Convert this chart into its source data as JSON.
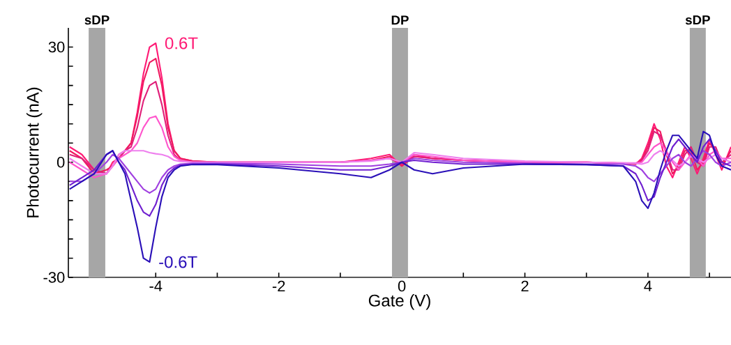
{
  "chart_data": {
    "type": "line",
    "xlabel": "Gate (V)",
    "ylabel": "Photocurrent (nA)",
    "xlim": [
      -5.42,
      5.35
    ],
    "ylim": [
      -30,
      35
    ],
    "xticks": [
      {
        "value": -5,
        "label": null
      },
      -4,
      {
        "value": -3,
        "label": null
      },
      -2,
      {
        "value": -1,
        "label": null
      },
      0,
      {
        "value": 1,
        "label": null
      },
      2,
      {
        "value": 3,
        "label": null
      },
      4,
      {
        "value": 5,
        "label": null
      }
    ],
    "yticks": [
      -30,
      {
        "value": -25,
        "label": null
      },
      {
        "value": -20,
        "label": null
      },
      {
        "value": -15,
        "label": null
      },
      {
        "value": -10,
        "label": null
      },
      {
        "value": -5,
        "label": null
      },
      0,
      {
        "value": 5,
        "label": null
      },
      {
        "value": 10,
        "label": null
      },
      {
        "value": 15,
        "label": null
      },
      {
        "value": 20,
        "label": null
      },
      {
        "value": 25,
        "label": null
      },
      30
    ],
    "legend": false,
    "marker": "none",
    "line_style": "solid",
    "bands": [
      {
        "axis": "x",
        "from": -5.09,
        "to": -4.82,
        "label": "sDP",
        "color": "#a6a6a6"
      },
      {
        "axis": "x",
        "from": -0.16,
        "to": 0.1,
        "label": "DP",
        "color": "#a6a6a6"
      },
      {
        "axis": "x",
        "from": 4.68,
        "to": 4.94,
        "label": "sDP",
        "color": "#a6a6a6"
      }
    ],
    "x": [
      -5.4,
      -5.2,
      -5.0,
      -4.8,
      -4.7,
      -4.6,
      -4.5,
      -4.4,
      -4.3,
      -4.2,
      -4.1,
      -4.0,
      -3.9,
      -3.8,
      -3.7,
      -3.6,
      -3.4,
      -3.0,
      -2.0,
      -1.0,
      -0.5,
      -0.2,
      0,
      0.2,
      0.5,
      1.0,
      2.0,
      3.0,
      3.6,
      3.8,
      3.9,
      4.0,
      4.1,
      4.2,
      4.3,
      4.4,
      4.5,
      4.6,
      4.7,
      4.8,
      4.9,
      5.0,
      5.1,
      5.2,
      5.35
    ],
    "series": [
      {
        "name": "0.6T",
        "color": "#ff1a75",
        "values": [
          4,
          2,
          -2,
          -3,
          0,
          1,
          3,
          5,
          13,
          23,
          30,
          31,
          22,
          10,
          3,
          1,
          0.3,
          0,
          0,
          0,
          1,
          2,
          -1,
          2,
          1,
          0.5,
          0,
          0,
          -0.3,
          -0.5,
          1,
          5,
          10,
          6,
          -1,
          -4,
          0,
          4,
          1,
          -3,
          1,
          6,
          2,
          -2,
          4
        ]
      },
      {
        "color": "#f01a60",
        "values": [
          3,
          1,
          -3,
          -2,
          -1,
          2,
          3,
          5,
          12,
          21,
          26,
          27,
          20,
          9,
          3,
          1,
          0.3,
          0,
          0,
          0,
          0.5,
          1.5,
          -1,
          1.5,
          1,
          0.5,
          0,
          0,
          -0.3,
          -0.5,
          0.5,
          4,
          9,
          8,
          2,
          -3,
          -1,
          3,
          3,
          -2,
          0,
          5,
          3,
          -1,
          3
        ]
      },
      {
        "color": "#e0207a",
        "values": [
          2,
          1,
          -2,
          -3,
          -1,
          1,
          3,
          4,
          9,
          16,
          20,
          21,
          15,
          7,
          2,
          0.5,
          0.2,
          0,
          0,
          0,
          0.5,
          1,
          -0.5,
          1.5,
          1,
          0.5,
          0,
          0,
          -0.3,
          -0.3,
          0.5,
          3,
          8,
          7,
          3,
          -2,
          -2,
          2,
          4,
          0,
          -1,
          4,
          4,
          0,
          2
        ]
      },
      {
        "color": "#ff55cc",
        "values": [
          0,
          -2,
          -4,
          -3,
          -1,
          1,
          2,
          3,
          5,
          9,
          11.5,
          12,
          9,
          4,
          1.5,
          0.5,
          0,
          0,
          0,
          0,
          0.5,
          1,
          0,
          2,
          1.5,
          0.5,
          0,
          0,
          -0.2,
          -0.2,
          0,
          2,
          4,
          5,
          3,
          0,
          -2,
          0,
          2,
          1,
          -1,
          2,
          3,
          1,
          1
        ]
      },
      {
        "color": "#ee80ee",
        "values": [
          1,
          -1,
          -3,
          -3,
          -1,
          2,
          3,
          3,
          3,
          3,
          2.5,
          2.2,
          2,
          1.5,
          0.5,
          0.2,
          0,
          0,
          0,
          0,
          0.3,
          1,
          0,
          2.5,
          2,
          1,
          0.3,
          0,
          -0.2,
          -0.3,
          -0.5,
          0,
          2,
          3,
          2,
          0.5,
          -1,
          0,
          1.5,
          1,
          0,
          1,
          2,
          1,
          0
        ]
      },
      {
        "color": "#a040e0",
        "values": [
          -5,
          -5,
          -3,
          0,
          2,
          1,
          -1,
          -3,
          -5,
          -7,
          -8,
          -7,
          -4,
          -2,
          -1,
          -0.5,
          -0.3,
          -0.3,
          -0.5,
          -1,
          -1,
          -0.5,
          0,
          1,
          0.5,
          0,
          -0.3,
          -0.5,
          -0.5,
          -1,
          -2,
          -4,
          -5,
          -3,
          -1,
          1,
          2,
          0,
          -1,
          1,
          3,
          2,
          0,
          -1,
          0
        ]
      },
      {
        "color": "#7020d0",
        "values": [
          -6,
          -4,
          -2,
          2,
          3,
          0,
          -2,
          -6,
          -10,
          -13,
          -14,
          -11,
          -6,
          -3,
          -1.5,
          -0.8,
          -0.5,
          -0.5,
          -1,
          -2,
          -2,
          -1,
          0,
          0.5,
          0,
          -0.5,
          -0.5,
          -0.6,
          -1,
          -3,
          -6,
          -10,
          -9,
          -4,
          0,
          4,
          6,
          4,
          2,
          0,
          4,
          6,
          3,
          0,
          -1
        ]
      },
      {
        "name": "-0.6T",
        "color": "#2a10b8",
        "values": [
          -7,
          -5,
          -3,
          2,
          3,
          0,
          -3,
          -10,
          -17,
          -25,
          -26,
          -17,
          -9,
          -4,
          -2,
          -1,
          -0.6,
          -0.6,
          -1.5,
          -3,
          -4,
          -2,
          0,
          -2,
          -3,
          -1.5,
          -0.5,
          -0.6,
          -1,
          -5,
          -10,
          -12,
          -8,
          -2,
          3,
          7,
          7,
          5,
          3,
          1,
          8,
          7,
          2,
          -1,
          -2
        ]
      }
    ]
  }
}
